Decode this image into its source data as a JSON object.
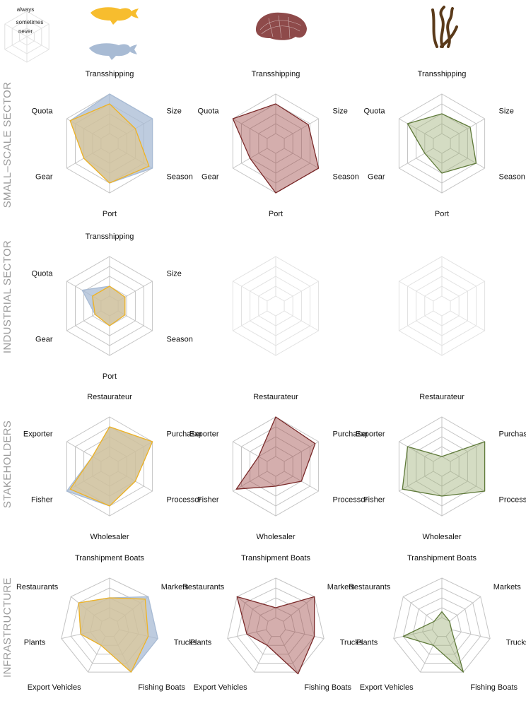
{
  "legend": {
    "levels": [
      "always",
      "sometimes",
      "never"
    ]
  },
  "icons": {
    "fish_yellow": "fish-icon",
    "fish_blue": "fish-icon",
    "shellfish": "shellfish-icon",
    "seaweed": "seaweed-icon"
  },
  "colors": {
    "yellow_stroke": "#f0b323",
    "yellow_fill": "#f2c56a",
    "blue_fill": "#a8bbd4",
    "red_stroke": "#7a2a2a",
    "red_fill": "#a04c4a",
    "green_stroke": "#5f7a3a",
    "green_fill": "#9fb27a",
    "grid": "#c4c4c4"
  },
  "rows": [
    {
      "title": "SMALL–SCALE SECTOR",
      "axes": [
        "Transshipping",
        "Size",
        "Season",
        "Port",
        "Gear",
        "Quota"
      ]
    },
    {
      "title": "INDUSTRIAL SECTOR",
      "axes": [
        "Transshipping",
        "Size",
        "Season",
        "Port",
        "Gear",
        "Quota"
      ]
    },
    {
      "title": "STAKEHOLDERS",
      "axes": [
        "Restaurateur",
        "Purchaser",
        "Processor",
        "Wholesaler",
        "Fisher",
        "Exporter"
      ]
    },
    {
      "title": "INFRASTRUCTURE",
      "axes": [
        "Transhipment Boats",
        "Markets",
        "Trucks",
        "Fishing Boats",
        "Export Vehicles",
        "Plants",
        "Restaurants"
      ]
    }
  ],
  "chart_data": [
    {
      "type": "radar",
      "row": 0,
      "col": 0,
      "rings": 5,
      "axes": [
        "Transshipping",
        "Size",
        "Season",
        "Port",
        "Gear",
        "Quota"
      ],
      "series": [
        {
          "color": "blue",
          "values": [
            5,
            5,
            5,
            4,
            3,
            4.6
          ]
        },
        {
          "color": "yellow",
          "values": [
            4,
            3,
            4.6,
            4,
            3,
            4.6
          ]
        }
      ]
    },
    {
      "type": "radar",
      "row": 0,
      "col": 1,
      "rings": 5,
      "axes": [
        "Transshipping",
        "Size",
        "Season",
        "Port",
        "Gear",
        "Quota"
      ],
      "series": [
        {
          "color": "red",
          "values": [
            4,
            3.8,
            5,
            5,
            3,
            5
          ]
        }
      ]
    },
    {
      "type": "radar",
      "row": 0,
      "col": 2,
      "rings": 5,
      "axes": [
        "Transshipping",
        "Size",
        "Season",
        "Port",
        "Gear",
        "Quota"
      ],
      "series": [
        {
          "color": "green",
          "values": [
            3,
            3.3,
            4,
            3,
            2,
            4
          ]
        }
      ]
    },
    {
      "type": "radar",
      "row": 1,
      "col": 0,
      "rings": 5,
      "axes": [
        "Transshipping",
        "Size",
        "Season",
        "Port",
        "Gear",
        "Quota"
      ],
      "series": [
        {
          "color": "blue",
          "values": [
            2,
            1.8,
            1.8,
            2,
            1.7,
            3.2
          ]
        },
        {
          "color": "yellow",
          "values": [
            2,
            1.8,
            1.8,
            2,
            1.7,
            2
          ]
        }
      ]
    },
    {
      "type": "radar",
      "row": 1,
      "col": 1,
      "rings": 5,
      "axes": [],
      "series": []
    },
    {
      "type": "radar",
      "row": 1,
      "col": 2,
      "rings": 5,
      "axes": [],
      "series": []
    },
    {
      "type": "radar",
      "row": 2,
      "col": 0,
      "rings": 5,
      "axes": [
        "Restaurateur",
        "Purchaser",
        "Processor",
        "Wholesaler",
        "Fisher",
        "Exporter"
      ],
      "series": [
        {
          "color": "blue",
          "values": [
            4,
            5,
            3,
            4,
            5,
            2
          ]
        },
        {
          "color": "yellow",
          "values": [
            4,
            5,
            3,
            4,
            4.6,
            2
          ]
        }
      ]
    },
    {
      "type": "radar",
      "row": 2,
      "col": 1,
      "rings": 5,
      "axes": [
        "Restaurateur",
        "Purchaser",
        "Processor",
        "Wholesaler",
        "Fisher",
        "Exporter"
      ],
      "series": [
        {
          "color": "red",
          "values": [
            5,
            4.6,
            3,
            2,
            4.6,
            2
          ]
        }
      ]
    },
    {
      "type": "radar",
      "row": 2,
      "col": 2,
      "rings": 5,
      "axes": [
        "Restaurateur",
        "Purchaser",
        "Processor",
        "Wholesaler",
        "Fisher",
        "Exporter"
      ],
      "series": [
        {
          "color": "green",
          "values": [
            1,
            5,
            5,
            3,
            4.6,
            4
          ]
        }
      ]
    },
    {
      "type": "radar",
      "row": 3,
      "col": 0,
      "rings": 5,
      "axes": [
        "Transhipment Boats",
        "Markets",
        "Trucks",
        "Fishing Boats",
        "Export Vehicles",
        "Plants",
        "Restaurants"
      ],
      "series": [
        {
          "color": "blue",
          "values": [
            3,
            5,
            5,
            5,
            2,
            3,
            4
          ]
        },
        {
          "color": "yellow",
          "values": [
            3,
            4.6,
            4,
            5,
            2,
            3,
            4
          ]
        }
      ]
    },
    {
      "type": "radar",
      "row": 3,
      "col": 1,
      "rings": 5,
      "axes": [
        "Transhipment Boats",
        "Markets",
        "Trucks",
        "Fishing Boats",
        "Export Vehicles",
        "Plants",
        "Restaurants"
      ],
      "series": [
        {
          "color": "red",
          "values": [
            2,
            5,
            4,
            5.2,
            2,
            3,
            5
          ]
        }
      ]
    },
    {
      "type": "radar",
      "row": 3,
      "col": 2,
      "rings": 5,
      "axes": [
        "Transhipment Boats",
        "Markets",
        "Trucks",
        "Fishing Boats",
        "Export Vehicles",
        "Plants",
        "Restaurants"
      ],
      "series": [
        {
          "color": "green",
          "values": [
            1.6,
            1,
            1,
            5,
            2,
            4,
            1
          ]
        }
      ]
    }
  ]
}
